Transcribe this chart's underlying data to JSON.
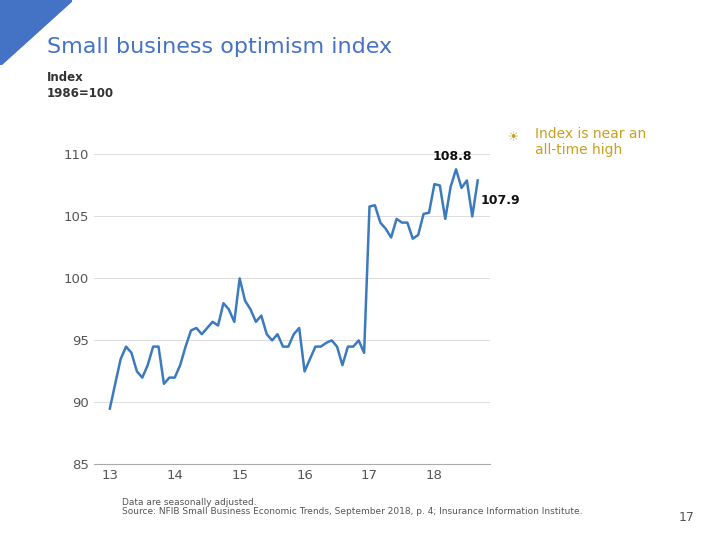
{
  "title": "Small business optimism index",
  "ylabel_line1": "Index",
  "ylabel_line2": "1986=100",
  "ylim": [
    85,
    112
  ],
  "yticks": [
    85,
    90,
    95,
    100,
    105,
    110
  ],
  "xlim": [
    12.75,
    18.85
  ],
  "xticks": [
    13,
    14,
    15,
    16,
    17,
    18
  ],
  "line_color": "#3b7abf",
  "line_width": 1.8,
  "annotation_108_8": "108.8",
  "annotation_107_9": "107.9",
  "legend_icon_color": "#c8a020",
  "legend_text_line1": "Index is near an",
  "legend_text_line2": "all-time high",
  "legend_text_color": "#c8a020",
  "title_color": "#4472c4",
  "title_bg_color": "#4472c4",
  "axis_color": "#333333",
  "tick_color": "#555555",
  "footnote_line1": "Data are seasonally adjusted.",
  "footnote_line2": "Source: NFIB Small Business Economic Trends, September 2018, p. 4; Insurance Information Institute.",
  "page_number": "17",
  "bg_color": "#ffffff",
  "triangle_color": "#4472c4",
  "spine_color": "#aaaaaa",
  "grid_color": "#dddddd",
  "data_x": [
    13.0,
    13.083,
    13.167,
    13.25,
    13.333,
    13.417,
    13.5,
    13.583,
    13.667,
    13.75,
    13.833,
    13.917,
    14.0,
    14.083,
    14.167,
    14.25,
    14.333,
    14.417,
    14.5,
    14.583,
    14.667,
    14.75,
    14.833,
    14.917,
    15.0,
    15.083,
    15.167,
    15.25,
    15.333,
    15.417,
    15.5,
    15.583,
    15.667,
    15.75,
    15.833,
    15.917,
    16.0,
    16.083,
    16.167,
    16.25,
    16.333,
    16.417,
    16.5,
    16.583,
    16.667,
    16.75,
    16.833,
    16.917,
    17.0,
    17.083,
    17.167,
    17.25,
    17.333,
    17.417,
    17.5,
    17.583,
    17.667,
    17.75,
    17.833,
    17.917,
    18.0,
    18.083,
    18.167,
    18.25,
    18.333,
    18.417,
    18.5,
    18.583,
    18.667
  ],
  "data_y": [
    89.5,
    91.5,
    93.5,
    94.5,
    94.0,
    92.5,
    92.0,
    93.0,
    94.5,
    94.5,
    91.5,
    92.0,
    92.0,
    93.0,
    94.5,
    95.8,
    96.0,
    95.5,
    96.0,
    96.5,
    96.2,
    98.0,
    97.5,
    96.5,
    100.0,
    98.2,
    97.5,
    96.5,
    97.0,
    95.5,
    95.0,
    95.5,
    94.5,
    94.5,
    95.5,
    96.0,
    92.5,
    93.5,
    94.5,
    94.5,
    94.8,
    95.0,
    94.5,
    93.0,
    94.5,
    94.5,
    95.0,
    94.0,
    105.8,
    105.9,
    104.5,
    104.0,
    103.3,
    104.8,
    104.5,
    104.5,
    103.2,
    103.5,
    105.2,
    105.3,
    107.6,
    107.5,
    104.8,
    107.4,
    108.8,
    107.3,
    107.9,
    105.0,
    107.9
  ]
}
